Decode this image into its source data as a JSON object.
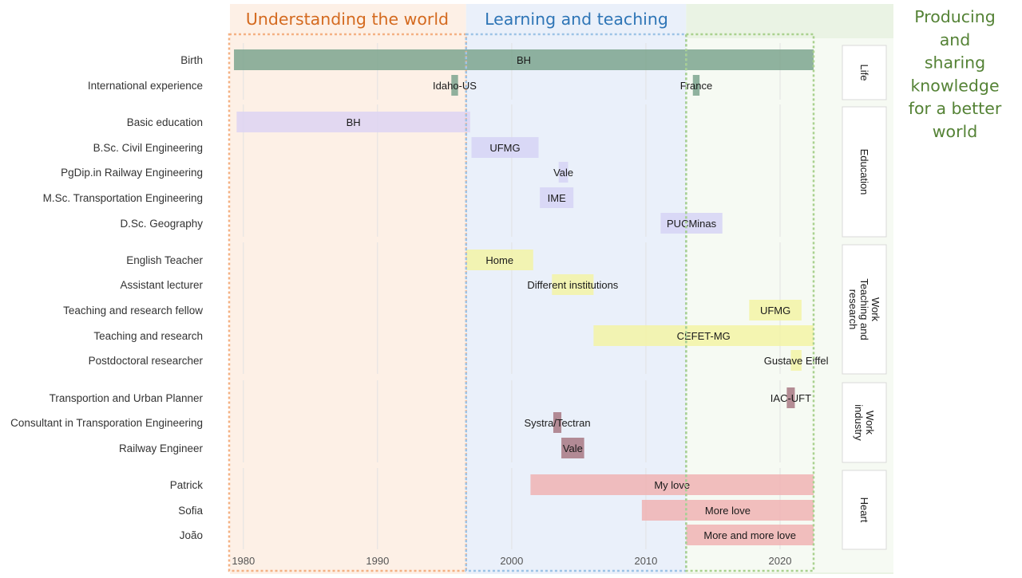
{
  "chart_data": {
    "type": "gantt",
    "xlim": [
      1979,
      2022.5
    ],
    "x_ticks": [
      1980,
      1990,
      2000,
      2010,
      2020
    ],
    "eras": [
      {
        "label": "Understanding the world",
        "start": 1979,
        "end": 1996.6,
        "color": "#d46a1f",
        "fill": "#fdf0e6",
        "border": "#f4b183"
      },
      {
        "label": "Learning and teaching",
        "start": 1996.6,
        "end": 2013,
        "color": "#2e75b6",
        "fill": "#eaf0fa",
        "border": "#9dc3e6"
      },
      {
        "label": "Producing and sharing knowledge for a better world",
        "lines": [
          "Producing",
          "and",
          "sharing",
          "knowledge",
          "for a better",
          "world"
        ],
        "start": 2013,
        "end": 2022.5,
        "color": "#548235",
        "fill": "#eaf3e4",
        "border": "#a9d18e"
      }
    ],
    "groups": [
      {
        "label": "Life",
        "lines": [
          "Life"
        ]
      },
      {
        "label": "Education",
        "lines": [
          "Education"
        ]
      },
      {
        "label": "Work Teaching and research",
        "lines": [
          "Work",
          "Teaching and",
          "research"
        ]
      },
      {
        "label": "Work industry",
        "lines": [
          "Work",
          "industry"
        ]
      },
      {
        "label": "Heart",
        "lines": [
          "Heart"
        ]
      }
    ],
    "rows": [
      {
        "group": 0,
        "label": "Birth",
        "bars": [
          {
            "start": 1979.3,
            "end": 2022.5,
            "text": "BH",
            "color": "#7da58e"
          }
        ]
      },
      {
        "group": 0,
        "label": "International experience",
        "bars": [
          {
            "start": 1995.5,
            "end": 1996.0,
            "text": "Idaho-US",
            "color": "#7da58e"
          },
          {
            "start": 2013.5,
            "end": 2014.0,
            "text": "France",
            "color": "#7da58e"
          }
        ]
      },
      {
        "group": 1,
        "label": "Basic education",
        "bars": [
          {
            "start": 1979.5,
            "end": 1996.9,
            "text": "BH",
            "color": "#ddd3f2"
          }
        ]
      },
      {
        "group": 1,
        "label": "B.Sc. Civil Engineering",
        "bars": [
          {
            "start": 1997.0,
            "end": 2002.0,
            "text": "UFMG",
            "color": "#d6d3f5"
          }
        ]
      },
      {
        "group": 1,
        "label": "PgDip.in Railway Engineering",
        "bars": [
          {
            "start": 2003.5,
            "end": 2004.2,
            "text": "Vale",
            "color": "#d6d3f5"
          }
        ]
      },
      {
        "group": 1,
        "label": "M.Sc. Transportation Engineering",
        "bars": [
          {
            "start": 2002.1,
            "end": 2004.6,
            "text": "IME",
            "color": "#d6d3f5"
          }
        ]
      },
      {
        "group": 1,
        "label": "D.Sc. Geography",
        "bars": [
          {
            "start": 2011.1,
            "end": 2015.7,
            "text": "PUCMinas",
            "color": "#d6d3f5"
          }
        ]
      },
      {
        "group": 2,
        "label": "English Teacher",
        "bars": [
          {
            "start": 1996.6,
            "end": 2001.6,
            "text": "Home",
            "color": "#f3f3a4"
          }
        ]
      },
      {
        "group": 2,
        "label": "Assistant lecturer",
        "bars": [
          {
            "start": 2003.0,
            "end": 2006.1,
            "text": "Different institutions",
            "color": "#f3f3a4"
          }
        ]
      },
      {
        "group": 2,
        "label": "Teaching and research fellow",
        "bars": [
          {
            "start": 2017.7,
            "end": 2021.6,
            "text": "UFMG",
            "color": "#f3f3a4"
          }
        ]
      },
      {
        "group": 2,
        "label": "Teaching and research",
        "bars": [
          {
            "start": 2006.1,
            "end": 2022.5,
            "text": "CEFET-MG",
            "color": "#f3f3a4"
          }
        ]
      },
      {
        "group": 2,
        "label": "Postdoctoral researcher",
        "bars": [
          {
            "start": 2020.8,
            "end": 2021.6,
            "text": "Gustave Eiffel",
            "color": "#f3f3a4"
          }
        ]
      },
      {
        "group": 3,
        "label": "Transportion and Urban Planner",
        "bars": [
          {
            "start": 2020.5,
            "end": 2021.1,
            "text": "IAC-UFT",
            "color": "#a87882"
          }
        ]
      },
      {
        "group": 3,
        "label": "Consultant in Transporation Engineering",
        "bars": [
          {
            "start": 2003.1,
            "end": 2003.7,
            "text": "Systra/Tectran",
            "color": "#a87882"
          }
        ]
      },
      {
        "group": 3,
        "label": "Railway Engineer",
        "bars": [
          {
            "start": 2003.7,
            "end": 2005.4,
            "text": "Vale",
            "color": "#a87882"
          }
        ]
      },
      {
        "group": 4,
        "label": "Patrick",
        "bars": [
          {
            "start": 2001.4,
            "end": 2022.5,
            "text": "My love",
            "color": "#f0b3b3"
          }
        ]
      },
      {
        "group": 4,
        "label": "Sofia",
        "bars": [
          {
            "start": 2009.7,
            "end": 2022.5,
            "text": "More love",
            "color": "#f0b3b3"
          }
        ]
      },
      {
        "group": 4,
        "label": "João",
        "bars": [
          {
            "start": 2013.0,
            "end": 2022.5,
            "text": "More and more love",
            "color": "#f0b3b3"
          }
        ]
      }
    ]
  }
}
